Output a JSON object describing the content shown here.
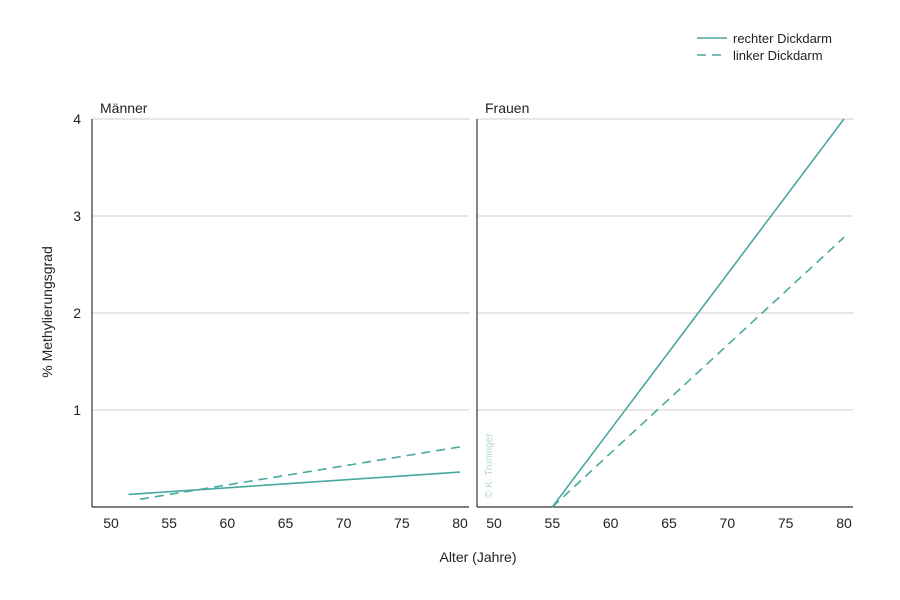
{
  "chart_data": {
    "type": "line",
    "xlabel": "Alter (Jahre)",
    "ylabel": "% Methylierungsgrad",
    "xlim": [
      50,
      80
    ],
    "ylim": [
      0,
      4
    ],
    "xticks": [
      50,
      55,
      60,
      65,
      70,
      75,
      80
    ],
    "yticks": [
      1,
      2,
      3,
      4
    ],
    "legend": {
      "position": "top-right",
      "entries": [
        {
          "label": "rechter Dickdarm",
          "style": "solid"
        },
        {
          "label": "linker Dickdarm",
          "style": "dashed"
        }
      ]
    },
    "color": "#4aa8a0",
    "grid": "horizontal",
    "watermark": "© K. Truninger",
    "panels": [
      {
        "title": "Männer",
        "series": [
          {
            "name": "rechter Dickdarm",
            "style": "solid",
            "x": [
              51.5,
              80
            ],
            "y": [
              0.13,
              0.36
            ]
          },
          {
            "name": "linker Dickdarm",
            "style": "dashed",
            "x": [
              52.5,
              80
            ],
            "y": [
              0.08,
              0.62
            ]
          }
        ]
      },
      {
        "title": "Frauen",
        "series": [
          {
            "name": "rechter Dickdarm",
            "style": "solid",
            "x": [
              55,
              80
            ],
            "y": [
              0,
              4
            ]
          },
          {
            "name": "linker Dickdarm",
            "style": "dashed",
            "x": [
              55,
              80
            ],
            "y": [
              0,
              2.78
            ]
          }
        ]
      }
    ]
  }
}
